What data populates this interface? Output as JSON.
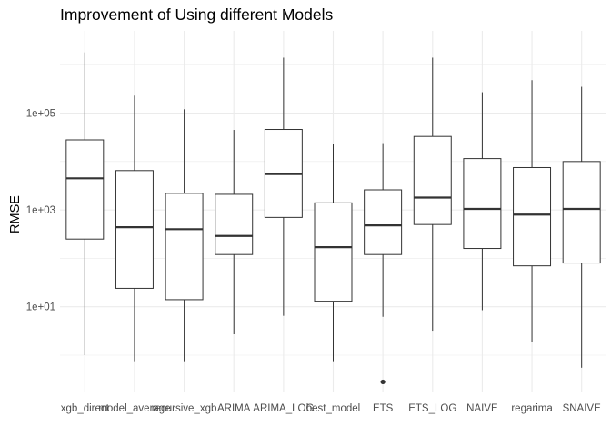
{
  "chart_data": {
    "type": "boxplot",
    "title": "Improvement of Using different Models",
    "xlabel": "",
    "ylabel": "RMSE",
    "yscale": "log10",
    "ylim": [
      0.17,
      5000000
    ],
    "yticks": [
      {
        "value": 10,
        "label": "1e+01"
      },
      {
        "value": 1000,
        "label": "1e+03"
      },
      {
        "value": 100000,
        "label": "1e+05"
      }
    ],
    "grid": true,
    "categories": [
      "xgb_direct",
      "model_average",
      "recursive_xgb",
      "ARIMA",
      "ARIMA_LOG",
      "best_model",
      "ETS",
      "ETS_LOG",
      "NAIVE",
      "regarima",
      "SNAIVE"
    ],
    "boxes": [
      {
        "name": "xgb_direct",
        "whisker_low": 1.0,
        "q1": 250,
        "median": 4500,
        "q3": 28000,
        "whisker_high": 1800000,
        "outliers": []
      },
      {
        "name": "model_average",
        "whisker_low": 0.75,
        "q1": 24,
        "median": 440,
        "q3": 6500,
        "whisker_high": 230000,
        "outliers": []
      },
      {
        "name": "recursive_xgb",
        "whisker_low": 0.75,
        "q1": 14,
        "median": 400,
        "q3": 2200,
        "whisker_high": 120000,
        "outliers": []
      },
      {
        "name": "ARIMA",
        "whisker_low": 2.7,
        "q1": 120,
        "median": 290,
        "q3": 2100,
        "whisker_high": 45000,
        "outliers": []
      },
      {
        "name": "ARIMA_LOG",
        "whisker_low": 6.5,
        "q1": 700,
        "median": 5500,
        "q3": 46000,
        "whisker_high": 1400000,
        "outliers": []
      },
      {
        "name": "best_model",
        "whisker_low": 0.75,
        "q1": 13,
        "median": 170,
        "q3": 1400,
        "whisker_high": 23000,
        "outliers": []
      },
      {
        "name": "ETS",
        "whisker_low": 6.2,
        "q1": 120,
        "median": 480,
        "q3": 2600,
        "whisker_high": 24000,
        "outliers": [
          0.28
        ]
      },
      {
        "name": "ETS_LOG",
        "whisker_low": 3.2,
        "q1": 500,
        "median": 1800,
        "q3": 33000,
        "whisker_high": 1400000,
        "outliers": []
      },
      {
        "name": "NAIVE",
        "whisker_low": 8.5,
        "q1": 160,
        "median": 1050,
        "q3": 11500,
        "whisker_high": 270000,
        "outliers": []
      },
      {
        "name": "regarima",
        "whisker_low": 1.9,
        "q1": 70,
        "median": 800,
        "q3": 7500,
        "whisker_high": 480000,
        "outliers": []
      },
      {
        "name": "SNAIVE",
        "whisker_low": 0.55,
        "q1": 80,
        "median": 1050,
        "q3": 10000,
        "whisker_high": 350000,
        "outliers": []
      }
    ],
    "colors": {
      "box_fill": "#ffffff",
      "line": "#333333",
      "grid": "#ebebeb",
      "outlier": "#333333"
    }
  }
}
